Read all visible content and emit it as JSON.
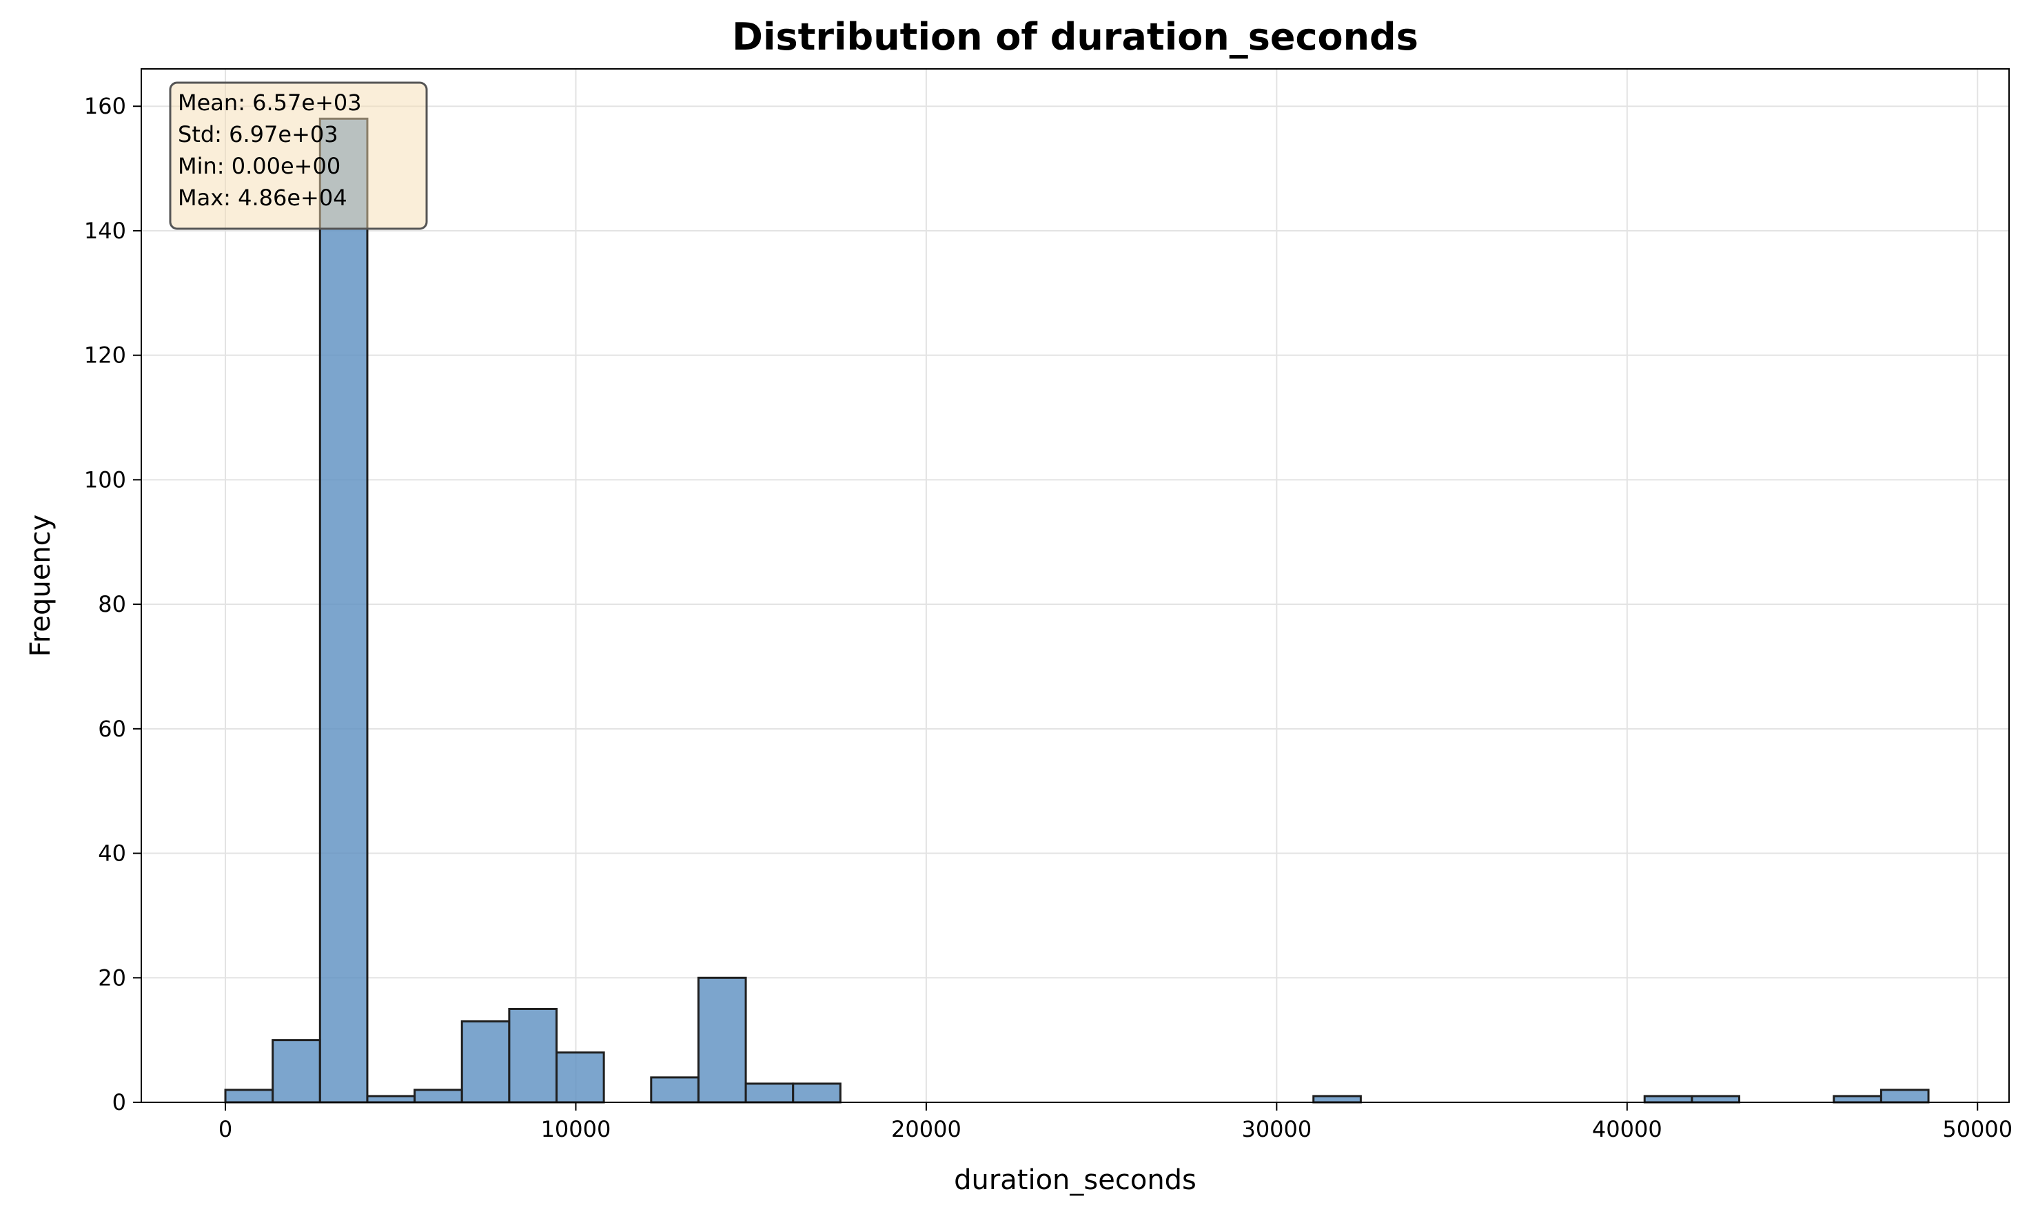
{
  "chart_data": {
    "type": "histogram",
    "title": "Distribution of duration_seconds",
    "xlabel": "duration_seconds",
    "ylabel": "Frequency",
    "xlim": [
      -2400,
      50900
    ],
    "ylim": [
      0,
      166
    ],
    "xticks": [
      0,
      10000,
      20000,
      30000,
      40000,
      50000
    ],
    "yticks": [
      0,
      20,
      40,
      60,
      80,
      100,
      120,
      140,
      160
    ],
    "grid": true,
    "bin_start": 0,
    "bin_width": 1350,
    "counts": [
      2,
      10,
      158,
      1,
      2,
      13,
      15,
      8,
      0,
      4,
      20,
      3,
      3,
      0,
      0,
      0,
      0,
      0,
      0,
      0,
      0,
      0,
      0,
      1,
      0,
      0,
      0,
      0,
      0,
      0,
      1,
      1,
      0,
      0,
      1,
      2
    ],
    "stats": [
      "Mean: 6.57e+03",
      "Std: 6.97e+03",
      "Min: 0.00e+00",
      "Max: 4.86e+04"
    ],
    "colors": {
      "bar_fill": "#5b8fc1",
      "bar_edge": "#1f1f1f",
      "grid": "#e3e3e3",
      "stats_bg": "#f5deb3",
      "stats_edge": "#555555"
    }
  }
}
